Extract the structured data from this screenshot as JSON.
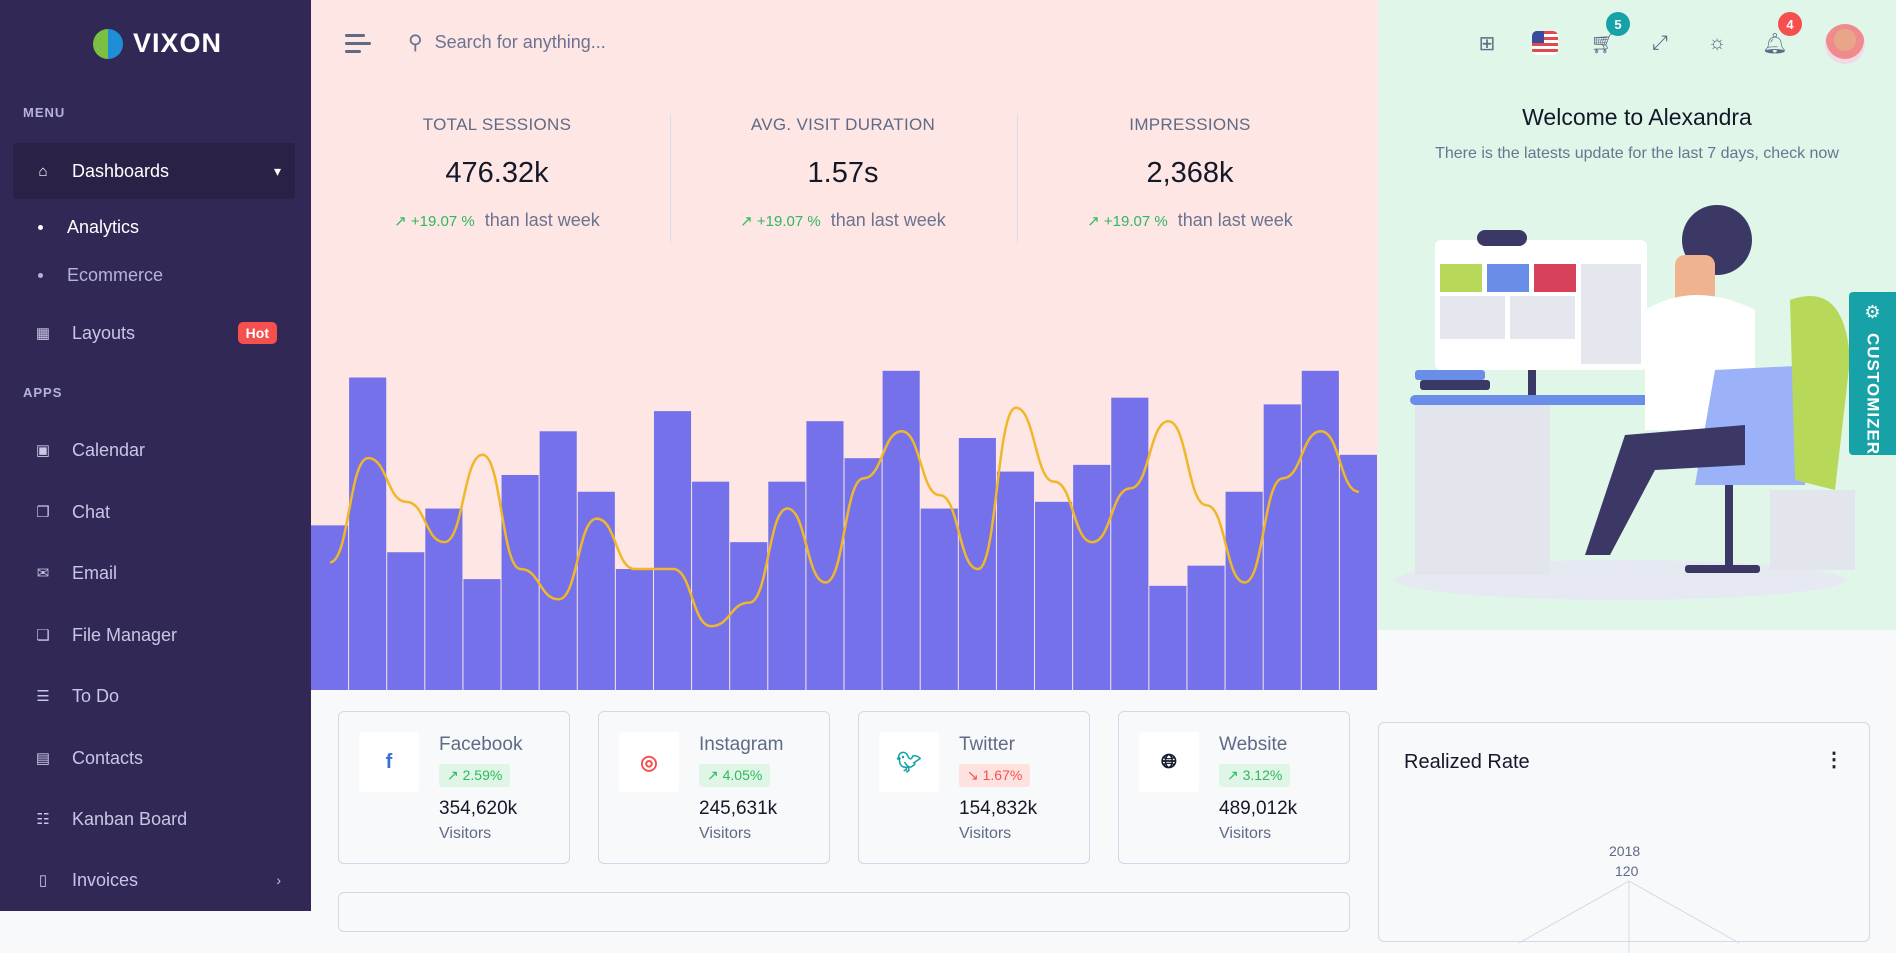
{
  "brand": {
    "name": "VIXON"
  },
  "sidebar": {
    "menu_label": "MENU",
    "apps_label": "APPS",
    "dashboards": "Dashboards",
    "sub": [
      "Analytics",
      "Ecommerce"
    ],
    "layouts": "Layouts",
    "hot": "Hot",
    "apps": [
      "Calendar",
      "Chat",
      "Email",
      "File Manager",
      "To Do",
      "Contacts",
      "Kanban Board",
      "Invoices"
    ]
  },
  "search": {
    "placeholder": "Search for anything..."
  },
  "topbar": {
    "cart_count": "5",
    "notif_count": "4"
  },
  "stats": [
    {
      "label": "TOTAL SESSIONS",
      "value": "476.32k",
      "change": "+19.07 %",
      "suffix": "than last week"
    },
    {
      "label": "AVG. VISIT DURATION",
      "value": "1.57s",
      "change": "+19.07 %",
      "suffix": "than last week"
    },
    {
      "label": "IMPRESSIONS",
      "value": "2,368k",
      "change": "+19.07 %",
      "suffix": "than last week"
    }
  ],
  "welcome": {
    "title": "Welcome to Alexandra",
    "subtitle": "There is the latests update for the last 7 days, check now"
  },
  "customizer": "CUSTOMIZER",
  "social": [
    {
      "name": "Facebook",
      "change": "2.59%",
      "trend": "up",
      "value": "354,620k",
      "unit": "Visitors",
      "icon": "facebook-icon",
      "color": "#3b6fd8"
    },
    {
      "name": "Instagram",
      "change": "4.05%",
      "trend": "up",
      "value": "245,631k",
      "unit": "Visitors",
      "icon": "instagram-icon",
      "color": "#f5504e"
    },
    {
      "name": "Twitter",
      "change": "1.67%",
      "trend": "down",
      "value": "154,832k",
      "unit": "Visitors",
      "icon": "twitter-icon",
      "color": "#17a2a8"
    },
    {
      "name": "Website",
      "change": "3.12%",
      "trend": "up",
      "value": "489,012k",
      "unit": "Visitors",
      "icon": "globe-icon",
      "color": "#141829"
    }
  ],
  "realized": {
    "title": "Realized Rate",
    "axis_label": "2018",
    "tick": "120"
  },
  "chart_data": {
    "type": "bar",
    "series": [
      {
        "type": "bar",
        "color": "#7471ea",
        "values": [
          49,
          93,
          41,
          54,
          33,
          64,
          77,
          59,
          36,
          83,
          62,
          44,
          62,
          80,
          69,
          95,
          54,
          75,
          65,
          56,
          67,
          87,
          31,
          37,
          59,
          85,
          95,
          70
        ]
      },
      {
        "type": "line",
        "color": "#f0b729",
        "values": [
          38,
          69,
          56,
          44,
          70,
          36,
          27,
          51,
          36,
          36,
          19,
          26,
          54,
          32,
          63,
          77,
          58,
          36,
          84,
          62,
          44,
          60,
          80,
          55,
          32,
          63,
          77,
          59
        ]
      }
    ],
    "ylim": [
      0,
      100
    ],
    "grid": false
  },
  "colors": {
    "sidebar": "#322856",
    "accent": "#7471ea",
    "success": "#2fb85e",
    "danger": "#f5504e",
    "teal": "#17a2a8"
  }
}
